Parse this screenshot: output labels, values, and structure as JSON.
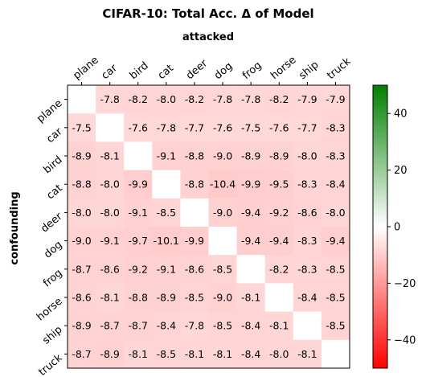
{
  "chart_data": {
    "type": "heatmap",
    "title": "CIFAR-10: Total Acc. Δ of Model",
    "xlabel": "attacked",
    "ylabel": "confounding",
    "x_categories": [
      "plane",
      "car",
      "bird",
      "cat",
      "deer",
      "dog",
      "frog",
      "horse",
      "ship",
      "truck"
    ],
    "y_categories": [
      "plane",
      "car",
      "bird",
      "cat",
      "deer",
      "dog",
      "frog",
      "horse",
      "ship",
      "truck"
    ],
    "values": [
      [
        null,
        -7.8,
        -8.2,
        -8.0,
        -8.2,
        -7.8,
        -7.8,
        -8.2,
        -7.9,
        -7.9
      ],
      [
        -7.5,
        null,
        -7.6,
        -7.8,
        -7.7,
        -7.6,
        -7.5,
        -7.6,
        -7.7,
        -8.3
      ],
      [
        -8.9,
        -8.1,
        null,
        -9.1,
        -8.8,
        -9.0,
        -8.9,
        -8.9,
        -8.0,
        -8.3
      ],
      [
        -8.8,
        -8.0,
        -9.9,
        null,
        -8.8,
        -10.4,
        -9.9,
        -9.5,
        -8.3,
        -8.4
      ],
      [
        -8.0,
        -8.0,
        -9.1,
        -8.5,
        null,
        -9.0,
        -9.4,
        -9.2,
        -8.6,
        -8.0
      ],
      [
        -9.0,
        -9.1,
        -9.7,
        -10.1,
        -9.9,
        null,
        -9.4,
        -9.4,
        -8.3,
        -9.4
      ],
      [
        -8.7,
        -8.6,
        -9.2,
        -9.1,
        -8.6,
        -8.5,
        null,
        -8.2,
        -8.3,
        -8.5
      ],
      [
        -8.6,
        -8.1,
        -8.8,
        -8.9,
        -8.5,
        -9.0,
        -8.1,
        null,
        -8.4,
        -8.5
      ],
      [
        -8.9,
        -8.7,
        -8.7,
        -8.4,
        -7.8,
        -8.5,
        -8.4,
        -8.1,
        null,
        -8.5
      ],
      [
        -8.7,
        -8.9,
        -8.1,
        -8.5,
        -8.1,
        -8.1,
        -8.4,
        -8.0,
        -8.1,
        null
      ]
    ],
    "colorbar": {
      "range": [
        -50,
        50
      ],
      "ticks": [
        40,
        20,
        0,
        -20,
        -40
      ],
      "colors": {
        "low": "#ff0000",
        "mid": "#ffffff",
        "high": "#008000"
      }
    }
  }
}
